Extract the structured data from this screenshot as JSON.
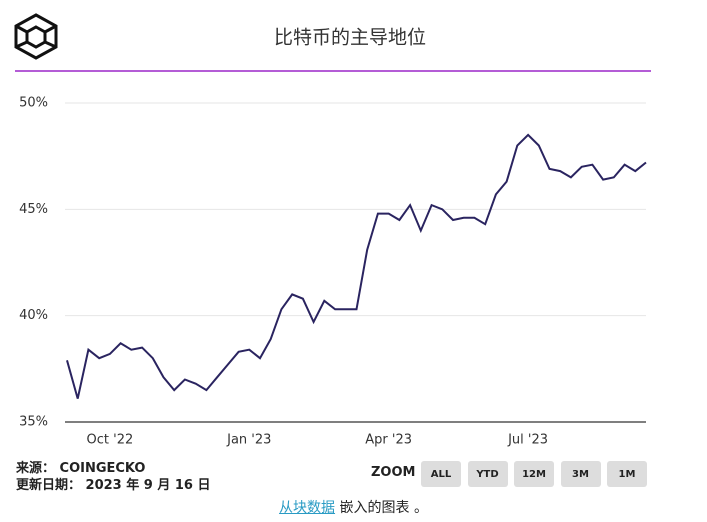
{
  "chart_data": {
    "type": "line",
    "title": "比特币的主导地位",
    "categories": [
      null,
      null,
      null,
      null,
      "Oct '22",
      null,
      null,
      null,
      null,
      null,
      null,
      null,
      null,
      null,
      null,
      null,
      null,
      "Jan '23",
      null,
      null,
      null,
      null,
      null,
      null,
      null,
      null,
      null,
      null,
      null,
      null,
      "Apr '23",
      null,
      null,
      null,
      null,
      null,
      null,
      null,
      null,
      null,
      null,
      null,
      null,
      "Jul '23",
      null,
      null,
      null,
      null,
      null,
      null,
      null,
      null,
      null,
      null,
      null
    ],
    "series": [
      {
        "color": "#2a2460",
        "values": [
          37.9,
          36.1,
          38.4,
          38.0,
          38.2,
          38.7,
          38.4,
          38.5,
          38.0,
          37.1,
          36.5,
          37.0,
          36.8,
          36.5,
          37.1,
          37.7,
          38.3,
          38.4,
          38.0,
          38.9,
          40.3,
          41.0,
          40.8,
          39.7,
          40.7,
          40.3,
          40.3,
          40.3,
          43.1,
          44.8,
          44.8,
          44.5,
          45.2,
          44.0,
          45.2,
          45.0,
          44.5,
          44.6,
          44.6,
          44.3,
          45.7,
          46.3,
          48.0,
          48.5,
          48.0,
          46.9,
          46.8,
          46.5,
          47.0,
          47.1,
          46.4,
          46.5,
          47.1,
          46.8,
          47.2
        ]
      }
    ],
    "ylim": [
      35,
      50
    ],
    "yticks": [
      {
        "value": 35,
        "label": "35%"
      },
      {
        "value": 40,
        "label": "40%"
      },
      {
        "value": 45,
        "label": "45%"
      },
      {
        "value": 50,
        "label": "50%"
      }
    ],
    "grid": true,
    "source": "来源： COINGECKO",
    "updated": "更新日期： 2023 年 9 月 16 日"
  },
  "controls": {
    "zoom_label": "ZOOM",
    "buttons": [
      "ALL",
      "YTD",
      "12M",
      "3M",
      "1M"
    ]
  },
  "footer": {
    "link": "从块数据",
    "text": "嵌入的图表 。"
  }
}
